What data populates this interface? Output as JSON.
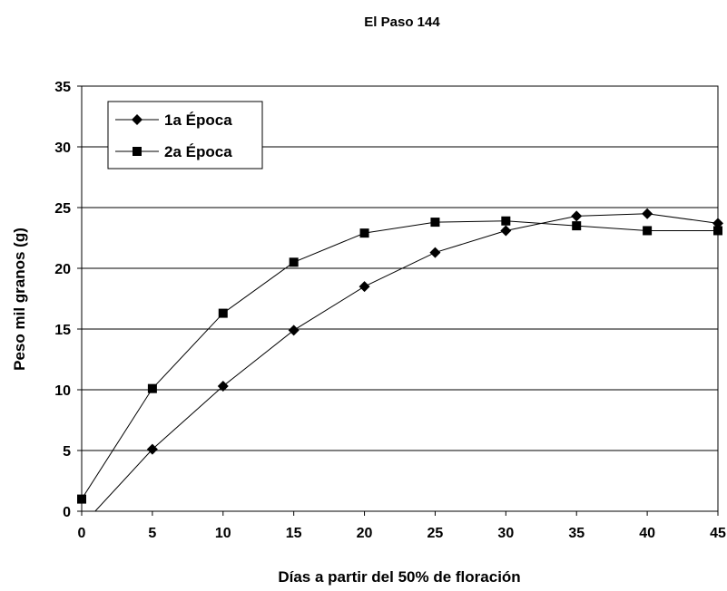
{
  "chart_data": {
    "type": "line",
    "title": "El Paso 144",
    "xlabel": "Días a partir del 50% de floración",
    "ylabel": "Peso mil granos (g)",
    "xlim": [
      0,
      45
    ],
    "ylim": [
      0,
      35
    ],
    "x_ticks": [
      "0",
      "5",
      "10",
      "15",
      "20",
      "25",
      "30",
      "35",
      "40",
      "45"
    ],
    "y_ticks": [
      "0",
      "5",
      "10",
      "15",
      "20",
      "25",
      "30",
      "35"
    ],
    "grid": "horizontal",
    "legend_position": "top-left",
    "series": [
      {
        "name": "1a Época",
        "marker": "diamond",
        "color": "#000000",
        "x": [
          0,
          5,
          10,
          15,
          20,
          25,
          30,
          35,
          40,
          45
        ],
        "y": [
          -1.2,
          5.1,
          10.3,
          14.9,
          18.5,
          21.3,
          23.1,
          24.3,
          24.5,
          23.7
        ]
      },
      {
        "name": "2a Época",
        "marker": "square",
        "color": "#000000",
        "x": [
          0,
          5,
          10,
          15,
          20,
          25,
          30,
          35,
          40,
          45
        ],
        "y": [
          1.0,
          10.1,
          16.3,
          20.5,
          22.9,
          23.8,
          23.9,
          23.5,
          23.1,
          23.1
        ]
      }
    ]
  }
}
